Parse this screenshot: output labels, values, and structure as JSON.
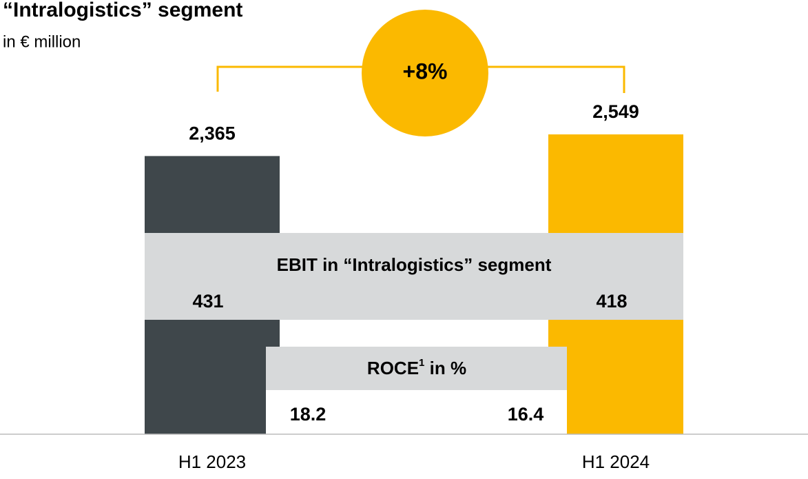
{
  "chart_data": {
    "type": "bar",
    "title": "“Intralogistics” segment",
    "subtitle": "in € million",
    "categories": [
      "H1 2023",
      "H1 2024"
    ],
    "values": [
      2365,
      2549
    ],
    "value_labels": [
      "2,365",
      "2,549"
    ],
    "colors": [
      "#3f474b",
      "#fbb900"
    ],
    "growth_label": "+8%",
    "ebit": {
      "title": "EBIT in “Intralogistics” segment",
      "values": [
        431,
        418
      ]
    },
    "roce": {
      "title": "ROCE",
      "footnote": "1",
      "unit": " in %",
      "values": [
        18.2,
        16.4
      ]
    }
  }
}
